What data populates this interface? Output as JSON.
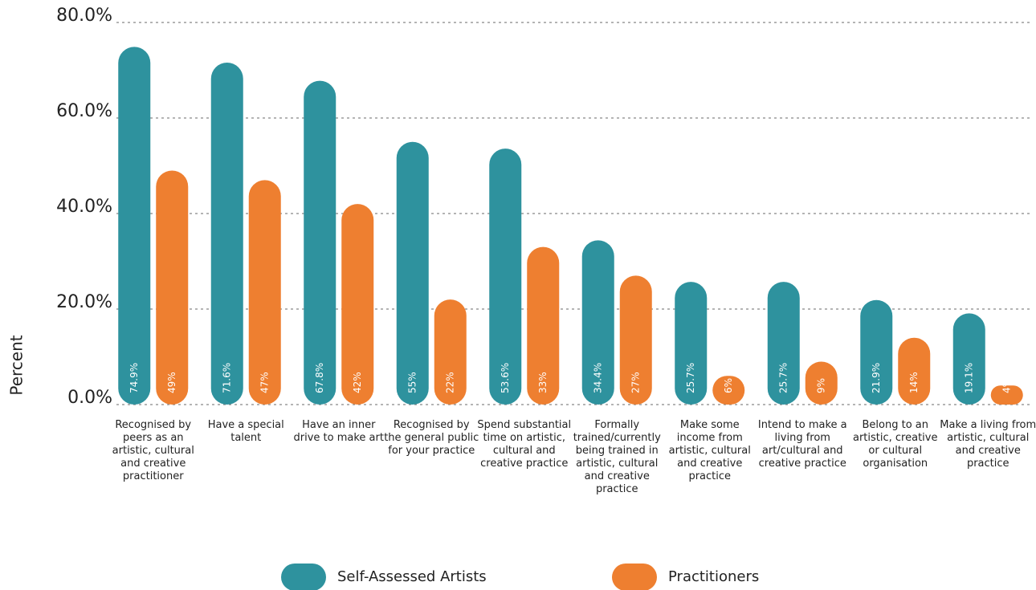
{
  "chart_data": {
    "type": "bar",
    "y_label": "Percent",
    "categories": [
      "Recognised by peers as an artistic, cultural and creative practitioner",
      "Have a special talent",
      "Have an inner drive to make art",
      "Recognised by the general public for your practice",
      "Spend substantial time on artistic, cultural and creative practice",
      "Formally trained/currently being trained in artistic, cultural and creative practice",
      "Make some income from artistic, cultural and creative practice",
      "Intend to make a living from art/cultural and creative practice",
      "Belong to an artistic, creative or cultural organisation",
      "Make a living from artistic, cultural and creative practice"
    ],
    "series": [
      {
        "name": "Self-Assessed Artists",
        "color": "#2e929e",
        "values": [
          74.9,
          71.6,
          67.8,
          55,
          53.6,
          34.4,
          25.7,
          25.7,
          21.9,
          19.1
        ],
        "value_labels": [
          "74.9%",
          "71.6%",
          "67.8%",
          "55%",
          "53.6%",
          "34.4%",
          "25.7%",
          "25.7%",
          "21.9%",
          "19.1%"
        ]
      },
      {
        "name": "Practitioners",
        "color": "#ee7f30",
        "values": [
          49,
          47,
          42,
          22,
          33,
          27,
          6,
          9,
          14,
          4
        ],
        "value_labels": [
          "49%",
          "47%",
          "42%",
          "22%",
          "33%",
          "27%",
          "6%",
          "9%",
          "14%",
          "4%"
        ]
      }
    ],
    "ylim": [
      0,
      80
    ],
    "yticks": [
      {
        "value": 0,
        "label": "0.0%"
      },
      {
        "value": 20,
        "label": "20.0%"
      },
      {
        "value": 40,
        "label": "40.0%"
      },
      {
        "value": 60,
        "label": "60.0%"
      },
      {
        "value": 80,
        "label": "80.0%"
      }
    ],
    "grid": true
  }
}
